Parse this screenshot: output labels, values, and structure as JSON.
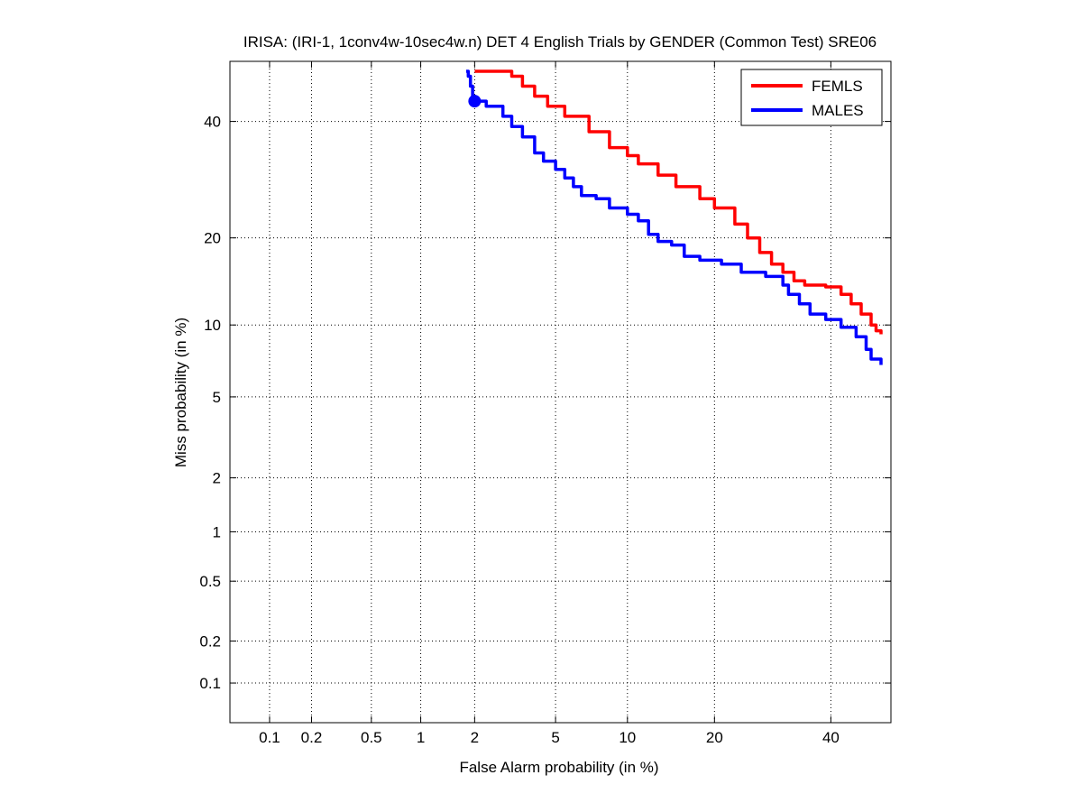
{
  "chart_data": {
    "type": "line",
    "title": "IRISA: (IRI-1, 1conv4w-10sec4w.n) DET 4 English Trials by GENDER (Common Test) SRE06",
    "xlabel": "False Alarm probability (in %)",
    "ylabel": "Miss probability (in %)",
    "x_scale": "probit",
    "y_scale": "probit",
    "xlim": [
      0.05,
      52
    ],
    "ylim": [
      0.05,
      52
    ],
    "x_ticks": [
      {
        "value": 0.1,
        "label": "0.1"
      },
      {
        "value": 0.2,
        "label": "0.2"
      },
      {
        "value": 0.5,
        "label": "0.5"
      },
      {
        "value": 1,
        "label": "1"
      },
      {
        "value": 2,
        "label": "2"
      },
      {
        "value": 5,
        "label": "5"
      },
      {
        "value": 10,
        "label": "10"
      },
      {
        "value": 20,
        "label": "20"
      },
      {
        "value": 40,
        "label": "40"
      }
    ],
    "y_ticks": [
      {
        "value": 0.1,
        "label": "0.1"
      },
      {
        "value": 0.2,
        "label": "0.2"
      },
      {
        "value": 0.5,
        "label": "0.5"
      },
      {
        "value": 1,
        "label": "1"
      },
      {
        "value": 2,
        "label": "2"
      },
      {
        "value": 5,
        "label": "5"
      },
      {
        "value": 10,
        "label": "10"
      },
      {
        "value": 20,
        "label": "20"
      },
      {
        "value": 40,
        "label": "40"
      }
    ],
    "grid": true,
    "legend_position": "top-right",
    "series": [
      {
        "name": "FEMLS",
        "color": "#ff0000",
        "points": [
          [
            2.0,
            50.0
          ],
          [
            2.8,
            50.0
          ],
          [
            3.1,
            49.0
          ],
          [
            3.5,
            47.0
          ],
          [
            4.0,
            45.0
          ],
          [
            4.6,
            43.0
          ],
          [
            5.5,
            41.0
          ],
          [
            7.0,
            38.0
          ],
          [
            8.5,
            35.0
          ],
          [
            10.0,
            33.5
          ],
          [
            11.0,
            32.0
          ],
          [
            13.0,
            30.0
          ],
          [
            15.0,
            28.0
          ],
          [
            18.0,
            26.0
          ],
          [
            20.0,
            24.5
          ],
          [
            23.0,
            22.0
          ],
          [
            25.0,
            20.0
          ],
          [
            27.0,
            18.0
          ],
          [
            29.0,
            16.5
          ],
          [
            31.0,
            15.5
          ],
          [
            33.0,
            14.5
          ],
          [
            35.0,
            14.0
          ],
          [
            39.0,
            13.8
          ],
          [
            42.0,
            13.0
          ],
          [
            44.0,
            12.0
          ],
          [
            46.0,
            11.0
          ],
          [
            48.0,
            10.0
          ],
          [
            49.0,
            9.5
          ],
          [
            50.0,
            9.2
          ]
        ],
        "marker": null
      },
      {
        "name": "MALES",
        "color": "#0000ff",
        "points": [
          [
            1.8,
            50.0
          ],
          [
            1.85,
            49.0
          ],
          [
            1.9,
            47.0
          ],
          [
            1.95,
            45.0
          ],
          [
            2.0,
            44.0
          ],
          [
            2.3,
            43.0
          ],
          [
            2.8,
            41.0
          ],
          [
            3.1,
            39.0
          ],
          [
            3.5,
            37.0
          ],
          [
            4.0,
            34.0
          ],
          [
            4.4,
            32.5
          ],
          [
            5.0,
            31.0
          ],
          [
            5.5,
            29.5
          ],
          [
            6.0,
            28.0
          ],
          [
            6.5,
            26.5
          ],
          [
            7.5,
            26.0
          ],
          [
            8.5,
            24.5
          ],
          [
            10.0,
            23.5
          ],
          [
            11.0,
            22.5
          ],
          [
            12.0,
            20.5
          ],
          [
            13.0,
            19.5
          ],
          [
            14.5,
            19.0
          ],
          [
            16.0,
            17.5
          ],
          [
            18.0,
            17.0
          ],
          [
            21.0,
            16.5
          ],
          [
            24.0,
            15.5
          ],
          [
            28.0,
            15.0
          ],
          [
            31.0,
            14.0
          ],
          [
            32.0,
            13.0
          ],
          [
            34.0,
            12.0
          ],
          [
            36.0,
            11.0
          ],
          [
            39.0,
            10.5
          ],
          [
            42.0,
            9.8
          ],
          [
            45.0,
            9.0
          ],
          [
            47.0,
            8.0
          ],
          [
            48.0,
            7.3
          ],
          [
            50.0,
            6.9
          ]
        ],
        "marker": [
          2.0,
          44.0
        ]
      }
    ]
  }
}
